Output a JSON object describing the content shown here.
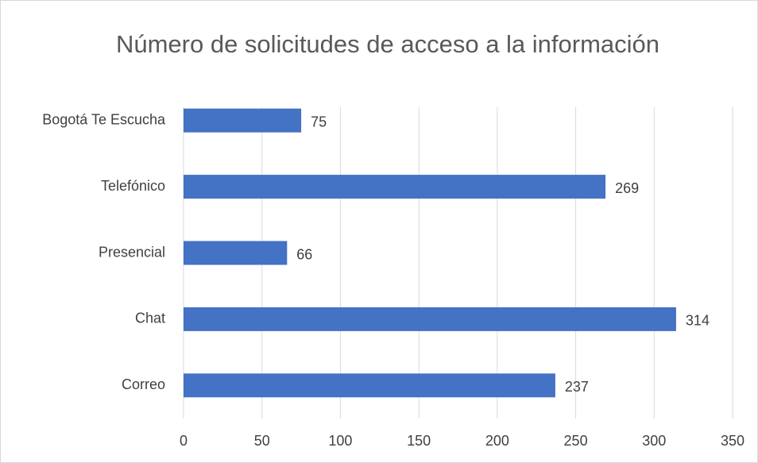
{
  "chart_data": {
    "type": "bar",
    "orientation": "horizontal",
    "title": "Número de solicitudes de acceso a la información",
    "categories": [
      "Bogotá Te Escucha",
      "Telefónico",
      "Presencial",
      "Chat",
      "Correo"
    ],
    "values": [
      75,
      269,
      66,
      314,
      237
    ],
    "color": "#4472c4",
    "xlim": [
      0,
      350
    ],
    "xticks": [
      0,
      50,
      100,
      150,
      200,
      250,
      300,
      350
    ],
    "grid": true
  }
}
